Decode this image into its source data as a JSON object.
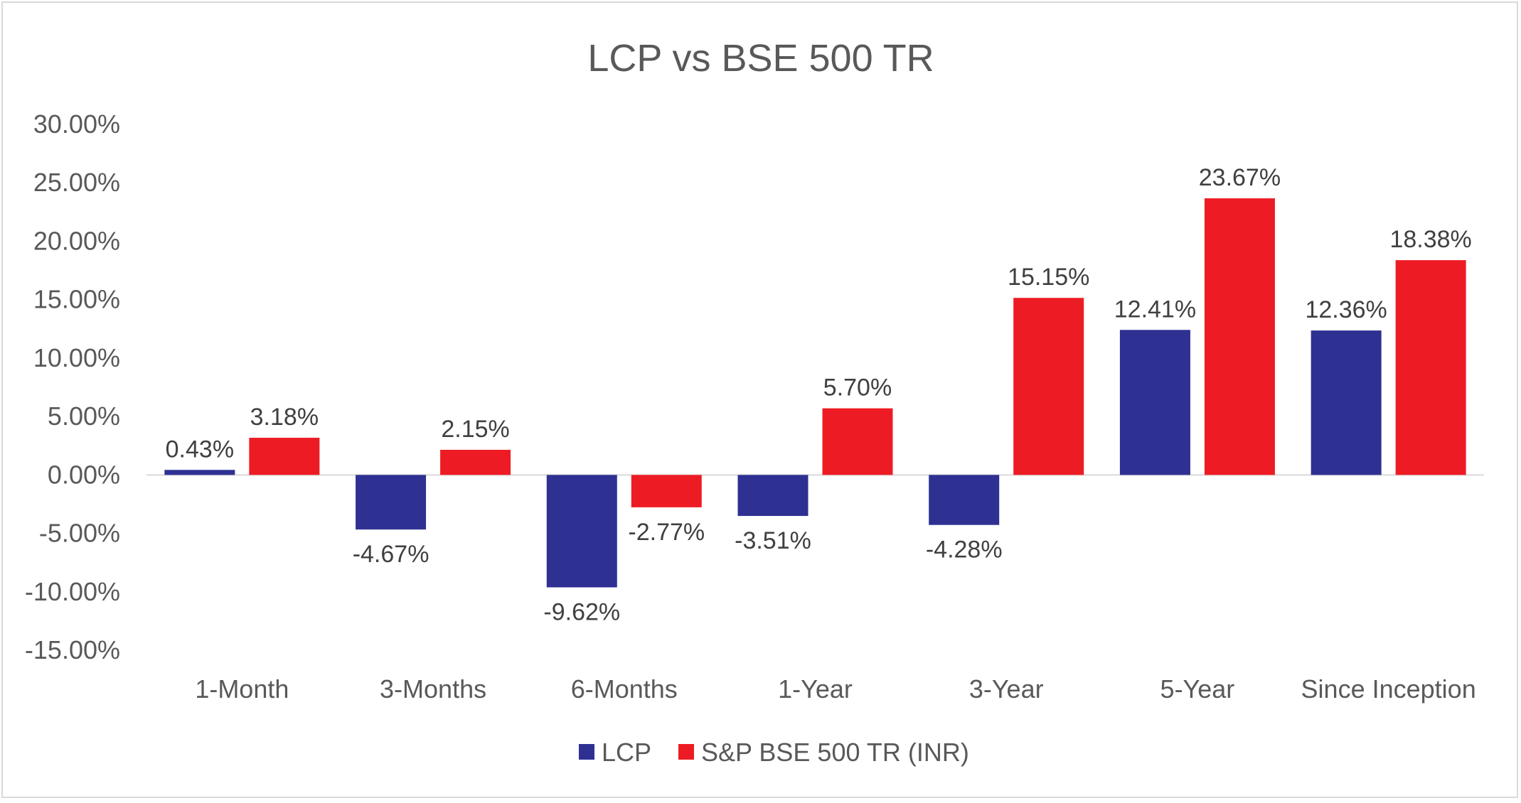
{
  "chart_data": {
    "type": "bar",
    "title": "LCP vs BSE 500 TR",
    "xlabel": "",
    "ylabel": "",
    "ylim": [
      -15,
      30
    ],
    "yticks": [
      30,
      25,
      20,
      15,
      10,
      5,
      0,
      -5,
      -10,
      -15
    ],
    "ytick_labels": [
      "30.00%",
      "25.00%",
      "20.00%",
      "15.00%",
      "10.00%",
      "5.00%",
      "0.00%",
      "-5.00%",
      "-10.00%",
      "-15.00%"
    ],
    "grid": false,
    "legend_position": "bottom",
    "categories": [
      "1-Month",
      "3-Months",
      "6-Months",
      "1-Year",
      "3-Year",
      "5-Year",
      "Since Inception"
    ],
    "series": [
      {
        "name": "LCP",
        "color": "#2e3192",
        "values": [
          0.43,
          -4.67,
          -9.62,
          -3.51,
          -4.28,
          12.41,
          12.36
        ],
        "labels": [
          "0.43%",
          "-4.67%",
          "-9.62%",
          "-3.51%",
          "-4.28%",
          "12.41%",
          "12.36%"
        ]
      },
      {
        "name": "S&P BSE 500 TR (INR)",
        "color": "#ed1c24",
        "values": [
          3.18,
          2.15,
          -2.77,
          5.7,
          15.15,
          23.67,
          18.38
        ],
        "labels": [
          "3.18%",
          "2.15%",
          "-2.77%",
          "5.70%",
          "15.15%",
          "23.67%",
          "18.38%"
        ]
      }
    ]
  }
}
